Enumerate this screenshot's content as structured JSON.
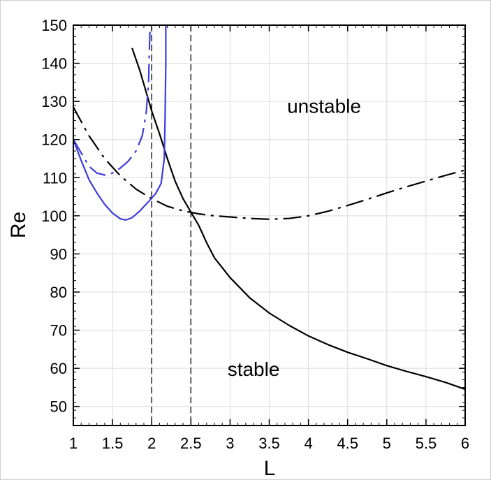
{
  "chart_data": {
    "type": "line",
    "xlabel": "L",
    "ylabel": "Re",
    "xlim": [
      1,
      6
    ],
    "ylim": [
      45,
      150
    ],
    "xticks": [
      1,
      1.5,
      2,
      2.5,
      3,
      3.5,
      4,
      4.5,
      5,
      5.5,
      6
    ],
    "xtick_labels": [
      "1",
      "1.5",
      "2",
      "2.5",
      "3",
      "3.5",
      "4",
      "4.5",
      "5",
      "5.5",
      "6"
    ],
    "yticks": [
      50,
      60,
      70,
      80,
      90,
      100,
      110,
      120,
      130,
      140,
      150
    ],
    "ytick_labels": [
      "50",
      "60",
      "70",
      "80",
      "90",
      "100",
      "110",
      "120",
      "130",
      "140",
      "150"
    ],
    "grid": true,
    "annotations": [
      {
        "text": "unstable",
        "x": 4.2,
        "y": 127
      },
      {
        "text": "stable",
        "x": 3.3,
        "y": 58
      }
    ],
    "series": [
      {
        "color": "#000000",
        "style": "solid",
        "points": [
          [
            1.75,
            144
          ],
          [
            1.85,
            138
          ],
          [
            2.0,
            127.5
          ],
          [
            2.1,
            121.5
          ],
          [
            2.2,
            115
          ],
          [
            2.3,
            109
          ],
          [
            2.4,
            104.5
          ],
          [
            2.5,
            101
          ],
          [
            2.6,
            97.5
          ],
          [
            2.7,
            93
          ],
          [
            2.8,
            89
          ],
          [
            3.0,
            83.8
          ],
          [
            3.25,
            78.5
          ],
          [
            3.5,
            74.5
          ],
          [
            3.75,
            71.3
          ],
          [
            4.0,
            68.5
          ],
          [
            4.25,
            66.2
          ],
          [
            4.5,
            64.2
          ],
          [
            4.75,
            62.5
          ],
          [
            5.0,
            60.7
          ],
          [
            5.25,
            59.2
          ],
          [
            5.5,
            57.8
          ],
          [
            5.75,
            56.3
          ],
          [
            6.0,
            54.5
          ]
        ]
      },
      {
        "color": "#000000",
        "style": "dashdot",
        "points": [
          [
            1.0,
            128.5
          ],
          [
            1.2,
            121
          ],
          [
            1.4,
            115
          ],
          [
            1.6,
            110.5
          ],
          [
            1.8,
            107
          ],
          [
            2.0,
            104.5
          ],
          [
            2.2,
            102.5
          ],
          [
            2.4,
            101.3
          ],
          [
            2.6,
            100.5
          ],
          [
            2.8,
            100
          ],
          [
            3.0,
            99.7
          ],
          [
            3.25,
            99.3
          ],
          [
            3.5,
            99.1
          ],
          [
            3.75,
            99.3
          ],
          [
            4.0,
            100
          ],
          [
            4.25,
            101.2
          ],
          [
            4.5,
            102.7
          ],
          [
            4.75,
            104.3
          ],
          [
            5.0,
            106
          ],
          [
            5.25,
            107.6
          ],
          [
            5.5,
            109.1
          ],
          [
            5.75,
            110.6
          ],
          [
            6.0,
            112
          ]
        ]
      },
      {
        "color": "#3c3cdc",
        "style": "solid",
        "points": [
          [
            1.0,
            120
          ],
          [
            1.1,
            114.5
          ],
          [
            1.2,
            109.5
          ],
          [
            1.3,
            106
          ],
          [
            1.4,
            103
          ],
          [
            1.5,
            100.7
          ],
          [
            1.6,
            99.2
          ],
          [
            1.67,
            98.9
          ],
          [
            1.75,
            99.5
          ],
          [
            1.85,
            101.3
          ],
          [
            1.95,
            103.5
          ],
          [
            2.05,
            105.8
          ],
          [
            2.12,
            108.5
          ],
          [
            2.16,
            115
          ],
          [
            2.17,
            125
          ],
          [
            2.18,
            140
          ],
          [
            2.18,
            150
          ]
        ]
      },
      {
        "color": "#3c3cdc",
        "style": "dashdot",
        "points": [
          [
            1.0,
            120
          ],
          [
            1.1,
            116.5
          ],
          [
            1.2,
            113
          ],
          [
            1.3,
            111.2
          ],
          [
            1.4,
            110.7
          ],
          [
            1.5,
            111.2
          ],
          [
            1.6,
            112.5
          ],
          [
            1.7,
            114.3
          ],
          [
            1.8,
            117
          ],
          [
            1.88,
            121
          ],
          [
            1.93,
            127
          ],
          [
            1.96,
            135
          ],
          [
            1.97,
            143
          ],
          [
            1.98,
            150
          ]
        ]
      }
    ],
    "reference_lines": [
      {
        "x": 2.0,
        "color": "#000000",
        "style": "dashed"
      },
      {
        "x": 2.5,
        "color": "#000000",
        "style": "dashed"
      }
    ]
  }
}
